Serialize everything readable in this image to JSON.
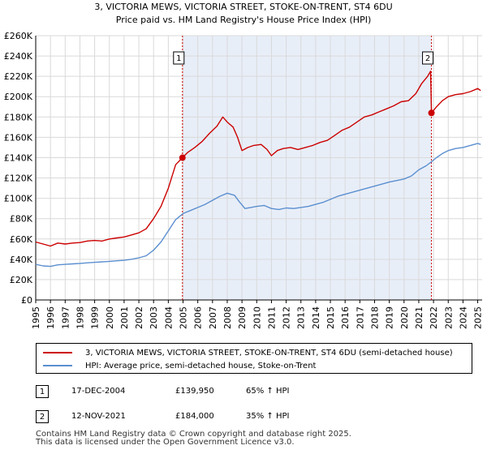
{
  "chart_data": {
    "type": "line",
    "title": "3, VICTORIA MEWS, VICTORIA STREET, STOKE-ON-TRENT, ST4 6DU",
    "subtitle": "Price paid vs. HM Land Registry's House Price Index (HPI)",
    "xlabel": "",
    "ylabel": "",
    "xlim": [
      1995,
      2025.3
    ],
    "ylim": [
      0,
      260000
    ],
    "x_ticks": [
      "1995",
      "1996",
      "1997",
      "1998",
      "1999",
      "2000",
      "2001",
      "2002",
      "2003",
      "2004",
      "2005",
      "2006",
      "2007",
      "2008",
      "2009",
      "2010",
      "2011",
      "2012",
      "2013",
      "2014",
      "2015",
      "2016",
      "2017",
      "2018",
      "2019",
      "2020",
      "2021",
      "2022",
      "2023",
      "2024",
      "2025"
    ],
    "y_ticks": [
      "£0",
      "£20K",
      "£40K",
      "£60K",
      "£80K",
      "£100K",
      "£120K",
      "£140K",
      "£160K",
      "£180K",
      "£200K",
      "£220K",
      "£240K",
      "£260K"
    ],
    "grid": true,
    "series": [
      {
        "name": "3, VICTORIA MEWS, VICTORIA STREET, STOKE-ON-TRENT, ST4 6DU (semi-detached house)",
        "color": "#cc0000",
        "points": [
          [
            1995,
            57000
          ],
          [
            1995.5,
            55000
          ],
          [
            1996,
            53000
          ],
          [
            1996.5,
            56000
          ],
          [
            1997,
            55000
          ],
          [
            1997.5,
            56000
          ],
          [
            1998,
            56500
          ],
          [
            1998.5,
            58000
          ],
          [
            1999,
            58500
          ],
          [
            1999.5,
            58000
          ],
          [
            2000,
            60000
          ],
          [
            2000.5,
            61000
          ],
          [
            2001,
            62000
          ],
          [
            2001.5,
            64000
          ],
          [
            2002,
            66000
          ],
          [
            2002.5,
            70000
          ],
          [
            2003,
            80000
          ],
          [
            2003.5,
            92000
          ],
          [
            2004,
            110000
          ],
          [
            2004.5,
            133000
          ],
          [
            2004.96,
            139950
          ],
          [
            2005.3,
            145000
          ],
          [
            2005.8,
            150000
          ],
          [
            2006.3,
            156000
          ],
          [
            2006.8,
            164000
          ],
          [
            2007.3,
            171000
          ],
          [
            2007.7,
            180000
          ],
          [
            2008,
            175000
          ],
          [
            2008.4,
            170000
          ],
          [
            2008.7,
            160000
          ],
          [
            2009,
            147000
          ],
          [
            2009.4,
            150000
          ],
          [
            2009.8,
            152000
          ],
          [
            2010.3,
            153000
          ],
          [
            2010.7,
            148000
          ],
          [
            2011,
            142000
          ],
          [
            2011.4,
            147000
          ],
          [
            2011.8,
            149000
          ],
          [
            2012.3,
            150000
          ],
          [
            2012.8,
            148000
          ],
          [
            2013.3,
            150000
          ],
          [
            2013.8,
            152000
          ],
          [
            2014.3,
            155000
          ],
          [
            2014.8,
            157000
          ],
          [
            2015.3,
            162000
          ],
          [
            2015.8,
            167000
          ],
          [
            2016.3,
            170000
          ],
          [
            2016.8,
            175000
          ],
          [
            2017.3,
            180000
          ],
          [
            2017.8,
            182000
          ],
          [
            2018.3,
            185000
          ],
          [
            2018.8,
            188000
          ],
          [
            2019.3,
            191000
          ],
          [
            2019.8,
            195000
          ],
          [
            2020.3,
            196000
          ],
          [
            2020.8,
            203000
          ],
          [
            2021.2,
            213000
          ],
          [
            2021.6,
            220000
          ],
          [
            2021.8,
            225000
          ],
          [
            2021.86,
            184000
          ],
          [
            2022.2,
            190000
          ],
          [
            2022.6,
            196000
          ],
          [
            2023,
            200000
          ],
          [
            2023.5,
            202000
          ],
          [
            2024,
            203000
          ],
          [
            2024.5,
            205000
          ],
          [
            2025,
            208000
          ],
          [
            2025.2,
            206000
          ]
        ]
      },
      {
        "name": "HPI: Average price, semi-detached house, Stoke-on-Trent",
        "color": "#5b8fd0",
        "points": [
          [
            1995,
            35000
          ],
          [
            1995.5,
            33500
          ],
          [
            1996,
            33000
          ],
          [
            1996.5,
            34500
          ],
          [
            1997,
            35000
          ],
          [
            1997.5,
            35500
          ],
          [
            1998,
            36000
          ],
          [
            1998.5,
            36500
          ],
          [
            1999,
            37000
          ],
          [
            1999.5,
            37500
          ],
          [
            2000,
            38000
          ],
          [
            2000.5,
            38500
          ],
          [
            2001,
            39000
          ],
          [
            2001.5,
            40000
          ],
          [
            2002,
            41500
          ],
          [
            2002.5,
            43500
          ],
          [
            2003,
            49000
          ],
          [
            2003.5,
            57000
          ],
          [
            2004,
            68000
          ],
          [
            2004.5,
            79000
          ],
          [
            2005,
            85000
          ],
          [
            2005.5,
            88000
          ],
          [
            2006,
            91000
          ],
          [
            2006.5,
            94000
          ],
          [
            2007,
            98000
          ],
          [
            2007.5,
            102000
          ],
          [
            2008,
            105000
          ],
          [
            2008.5,
            103000
          ],
          [
            2008.8,
            97000
          ],
          [
            2009.2,
            90000
          ],
          [
            2009.6,
            91000
          ],
          [
            2010,
            92000
          ],
          [
            2010.5,
            93000
          ],
          [
            2011,
            90000
          ],
          [
            2011.5,
            89000
          ],
          [
            2012,
            90500
          ],
          [
            2012.5,
            90000
          ],
          [
            2013,
            91000
          ],
          [
            2013.5,
            92000
          ],
          [
            2014,
            94000
          ],
          [
            2014.5,
            96000
          ],
          [
            2015,
            99000
          ],
          [
            2015.5,
            102000
          ],
          [
            2016,
            104000
          ],
          [
            2016.5,
            106000
          ],
          [
            2017,
            108000
          ],
          [
            2017.5,
            110000
          ],
          [
            2018,
            112000
          ],
          [
            2018.5,
            114000
          ],
          [
            2019,
            116000
          ],
          [
            2019.5,
            117500
          ],
          [
            2020,
            119000
          ],
          [
            2020.5,
            122000
          ],
          [
            2021,
            128000
          ],
          [
            2021.5,
            132000
          ],
          [
            2021.86,
            136000
          ],
          [
            2022.2,
            140000
          ],
          [
            2022.6,
            144000
          ],
          [
            2023,
            147000
          ],
          [
            2023.5,
            149000
          ],
          [
            2024,
            150000
          ],
          [
            2024.5,
            152000
          ],
          [
            2025,
            154000
          ],
          [
            2025.2,
            153000
          ]
        ]
      }
    ],
    "annotations": [
      {
        "label": "1",
        "x": 2004.96,
        "value": 139950
      },
      {
        "label": "2",
        "x": 2021.86,
        "value": 184000
      }
    ],
    "colors": {
      "axis": "#000000",
      "grid": "#d9d9d9",
      "shade": "#e8eef8",
      "vline": "#cc0000"
    }
  },
  "legend": {
    "property_label": "3, VICTORIA MEWS, VICTORIA STREET, STOKE-ON-TRENT, ST4 6DU (semi-detached house)",
    "hpi_label": "HPI: Average price, semi-detached house, Stoke-on-Trent"
  },
  "transactions": [
    {
      "num": "1",
      "date": "17-DEC-2004",
      "price": "£139,950",
      "hpi": "65% ↑ HPI"
    },
    {
      "num": "2",
      "date": "12-NOV-2021",
      "price": "£184,000",
      "hpi": "35% ↑ HPI"
    }
  ],
  "footer": {
    "line1": "Contains HM Land Registry data © Crown copyright and database right 2025.",
    "line2": "This data is licensed under the Open Government Licence v3.0."
  }
}
